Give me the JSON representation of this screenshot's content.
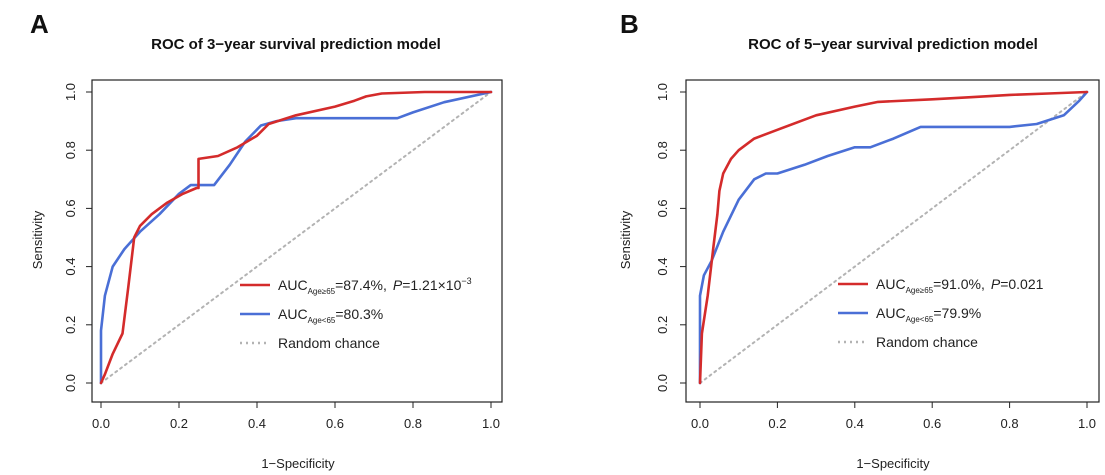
{
  "colors": {
    "red": "#d42b2b",
    "blue": "#4a6fd6",
    "gray": "#b3b3b3",
    "axis": "#222222"
  },
  "chart_data": [
    {
      "type": "line",
      "panel": "A",
      "title": "ROC of 3−year survival prediction model",
      "xlabel": "1−Specificity",
      "ylabel": "Sensitivity",
      "xlim": [
        0,
        1
      ],
      "ylim": [
        0,
        1
      ],
      "xticks": [
        "0.0",
        "0.2",
        "0.4",
        "0.6",
        "0.8",
        "1.0"
      ],
      "yticks": [
        "0.0",
        "0.2",
        "0.4",
        "0.6",
        "0.8",
        "1.0"
      ],
      "grid": false,
      "legend_position": "bottom-right",
      "series": [
        {
          "name": "AUC_Age≥65=87.4%, P=1.21×10−3",
          "legend": {
            "main": "AUC",
            "sub": "Age≥65",
            "value": "=87.4%,",
            "p_label": "P",
            "p_value": "=1.21×10",
            "p_exp": "−3"
          },
          "color": "red",
          "x": [
            0.0,
            0.01,
            0.03,
            0.055,
            0.07,
            0.085,
            0.1,
            0.13,
            0.17,
            0.21,
            0.245,
            0.25,
            0.25,
            0.3,
            0.35,
            0.4,
            0.43,
            0.5,
            0.6,
            0.65,
            0.68,
            0.72,
            0.83,
            1.0
          ],
          "y": [
            0.0,
            0.03,
            0.1,
            0.17,
            0.33,
            0.5,
            0.54,
            0.58,
            0.62,
            0.65,
            0.67,
            0.67,
            0.77,
            0.78,
            0.81,
            0.85,
            0.89,
            0.92,
            0.95,
            0.97,
            0.985,
            0.995,
            1.0,
            1.0
          ]
        },
        {
          "name": "AUC_Age<65=80.3%",
          "legend": {
            "main": "AUC",
            "sub": "Age<65",
            "value": "=80.3%"
          },
          "color": "blue",
          "x": [
            0.0,
            0.0,
            0.01,
            0.03,
            0.06,
            0.1,
            0.15,
            0.2,
            0.23,
            0.29,
            0.33,
            0.37,
            0.41,
            0.45,
            0.5,
            0.6,
            0.76,
            0.8,
            0.88,
            1.0
          ],
          "y": [
            0.0,
            0.18,
            0.3,
            0.4,
            0.46,
            0.52,
            0.58,
            0.65,
            0.68,
            0.68,
            0.75,
            0.83,
            0.885,
            0.9,
            0.91,
            0.91,
            0.91,
            0.93,
            0.965,
            1.0
          ]
        },
        {
          "name": "Random chance",
          "legend": {
            "main": "Random chance"
          },
          "color": "gray",
          "dashed": true,
          "x": [
            0,
            1
          ],
          "y": [
            0,
            1
          ]
        }
      ]
    },
    {
      "type": "line",
      "panel": "B",
      "title": "ROC of 5−year survival prediction model",
      "xlabel": "1−Specificity",
      "ylabel": "Sensitivity",
      "xlim": [
        0,
        1
      ],
      "ylim": [
        0,
        1
      ],
      "xticks": [
        "0.0",
        "0.2",
        "0.4",
        "0.6",
        "0.8",
        "1.0"
      ],
      "yticks": [
        "0.0",
        "0.2",
        "0.4",
        "0.6",
        "0.8",
        "1.0"
      ],
      "grid": false,
      "legend_position": "bottom-right",
      "series": [
        {
          "name": "AUC_Age≥65=91.0%, P=0.021",
          "legend": {
            "main": "AUC",
            "sub": "Age≥65",
            "value": "=91.0%,",
            "p_label": "P",
            "p_value": "=0.021"
          },
          "color": "red",
          "x": [
            0.0,
            0.005,
            0.02,
            0.035,
            0.045,
            0.05,
            0.06,
            0.08,
            0.1,
            0.14,
            0.2,
            0.3,
            0.4,
            0.46,
            0.6,
            0.7,
            0.8,
            0.9,
            1.0
          ],
          "y": [
            0.0,
            0.17,
            0.3,
            0.47,
            0.58,
            0.66,
            0.72,
            0.77,
            0.8,
            0.84,
            0.87,
            0.92,
            0.95,
            0.966,
            0.975,
            0.982,
            0.99,
            0.995,
            1.0
          ]
        },
        {
          "name": "AUC_Age<65=79.9%",
          "legend": {
            "main": "AUC",
            "sub": "Age<65",
            "value": "=79.9%"
          },
          "color": "blue",
          "x": [
            0.0,
            0.0,
            0.01,
            0.03,
            0.06,
            0.1,
            0.14,
            0.17,
            0.2,
            0.27,
            0.33,
            0.4,
            0.44,
            0.5,
            0.57,
            0.6,
            0.8,
            0.87,
            0.94,
            0.98,
            1.0
          ],
          "y": [
            0.0,
            0.3,
            0.37,
            0.42,
            0.52,
            0.63,
            0.7,
            0.72,
            0.72,
            0.75,
            0.78,
            0.81,
            0.81,
            0.84,
            0.88,
            0.88,
            0.88,
            0.89,
            0.92,
            0.97,
            1.0
          ]
        },
        {
          "name": "Random chance",
          "legend": {
            "main": "Random chance"
          },
          "color": "gray",
          "dashed": true,
          "x": [
            0,
            1
          ],
          "y": [
            0,
            1
          ]
        }
      ]
    }
  ]
}
